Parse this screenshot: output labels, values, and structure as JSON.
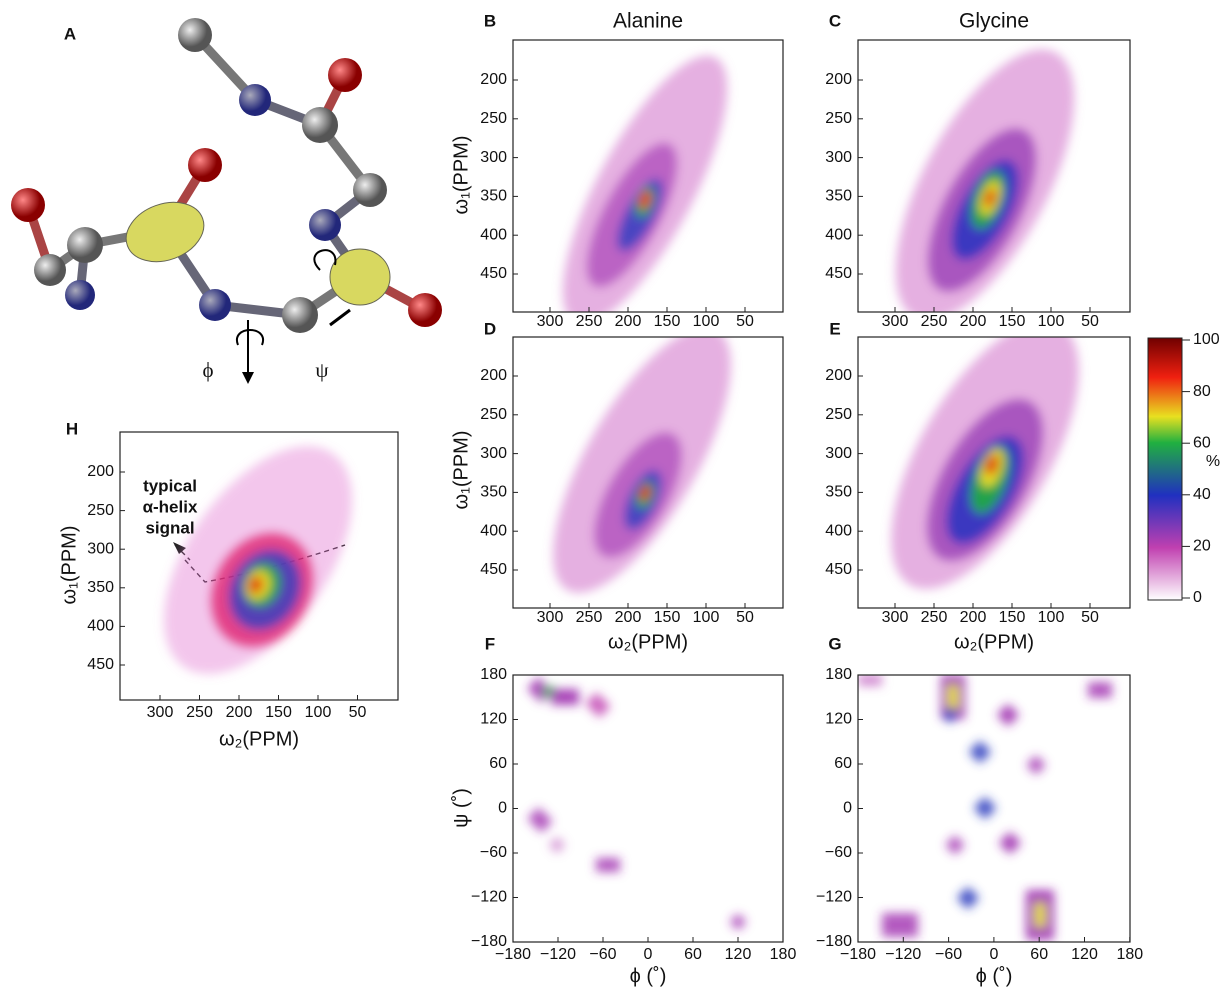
{
  "panels": [
    {
      "label": "A",
      "phi": "ϕ",
      "psi": "ψ"
    },
    {
      "label": "B",
      "title": "Alanine",
      "ylabel": "ω₁(PPM)",
      "yticks": [
        200,
        250,
        300,
        350,
        400,
        450
      ],
      "xticks": [
        300,
        250,
        200,
        150,
        100,
        50
      ]
    },
    {
      "label": "C",
      "title": "Glycine",
      "yticks": [
        200,
        250,
        300,
        350,
        400,
        450
      ],
      "xticks": [
        300,
        250,
        200,
        150,
        100,
        50
      ]
    },
    {
      "label": "D",
      "ylabel": "ω₁(PPM)",
      "xlabel": "ω₂(PPM)",
      "yticks": [
        200,
        250,
        300,
        350,
        400,
        450
      ],
      "xticks": [
        300,
        250,
        200,
        150,
        100,
        50
      ]
    },
    {
      "label": "E",
      "xlabel": "ω₂(PPM)",
      "yticks": [
        200,
        250,
        300,
        350,
        400,
        450
      ],
      "xticks": [
        300,
        250,
        200,
        150,
        100,
        50
      ]
    },
    {
      "label": "F",
      "ylabel": "ψ (˚)",
      "xlabel": "ϕ (˚)",
      "yticks": [
        180,
        120,
        60,
        0,
        "−60",
        "−120",
        "−180"
      ],
      "xticks": [
        "−180",
        "−120",
        "−60",
        0,
        60,
        120,
        180
      ]
    },
    {
      "label": "G",
      "xlabel": "ϕ (˚)",
      "yticks": [
        180,
        120,
        60,
        0,
        "−60",
        "−120",
        "−180"
      ],
      "xticks": [
        "−180",
        "−120",
        "−60",
        0,
        60,
        120,
        180
      ]
    },
    {
      "label": "H",
      "ylabel": "ω₁(PPM)",
      "xlabel": "ω₂(PPM)",
      "yticks": [
        200,
        250,
        300,
        350,
        400,
        450
      ],
      "xticks": [
        300,
        250,
        200,
        150,
        100,
        50
      ],
      "annotation": [
        "typical",
        "α-helix",
        "signal"
      ]
    }
  ],
  "colorbar": {
    "ticks": [
      100,
      80,
      60,
      40,
      20,
      0
    ],
    "unit": "%"
  }
}
